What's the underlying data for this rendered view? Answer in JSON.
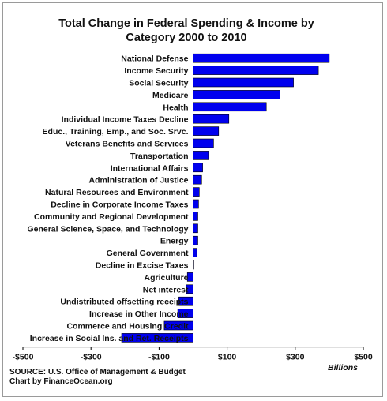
{
  "chart_data": {
    "type": "bar",
    "orientation": "horizontal",
    "title_line1": "Total Change in Federal Spending & Income by",
    "title_line2": "Category 2000 to 2010",
    "unit_label": "Billions",
    "source_line1": "SOURCE: U.S. Office of Management & Budget",
    "source_line2": "Chart by FinanceOcean.org",
    "xlim": [
      -500,
      500
    ],
    "ticks": [
      {
        "value": -500,
        "label": "-$500"
      },
      {
        "value": -300,
        "label": "-$300"
      },
      {
        "value": -100,
        "label": "-$100"
      },
      {
        "value": 100,
        "label": "$100"
      },
      {
        "value": 300,
        "label": "$300"
      },
      {
        "value": 500,
        "label": "$500"
      }
    ],
    "bar_color": "#0000ee",
    "categories": [
      "National Defense",
      "Income Security",
      "Social Security",
      "Medicare",
      "Health",
      "Individual Income Taxes Decline",
      "Educ., Training, Emp., and Soc. Srvc.",
      "Veterans Benefits and Services",
      "Transportation",
      "International Affairs",
      "Administration of Justice",
      "Natural Resources and Environment",
      "Decline in Corporate Income Taxes",
      "Community and Regional Development",
      "General Science, Space, and Technology",
      "Energy",
      "General Government",
      "Decline in Excise Taxes",
      "Agriculture",
      "Net interest",
      "Undistributed offsetting receipts",
      "Increase in Other Income",
      "Commerce and Housing Credit",
      "Increase in Social Ins. and Ret. Receipts"
    ],
    "values": [
      400,
      368,
      295,
      255,
      215,
      105,
      75,
      60,
      45,
      28,
      25,
      18,
      16,
      14,
      14,
      14,
      11,
      2,
      -17,
      -20,
      -42,
      -45,
      -85,
      -210
    ]
  }
}
